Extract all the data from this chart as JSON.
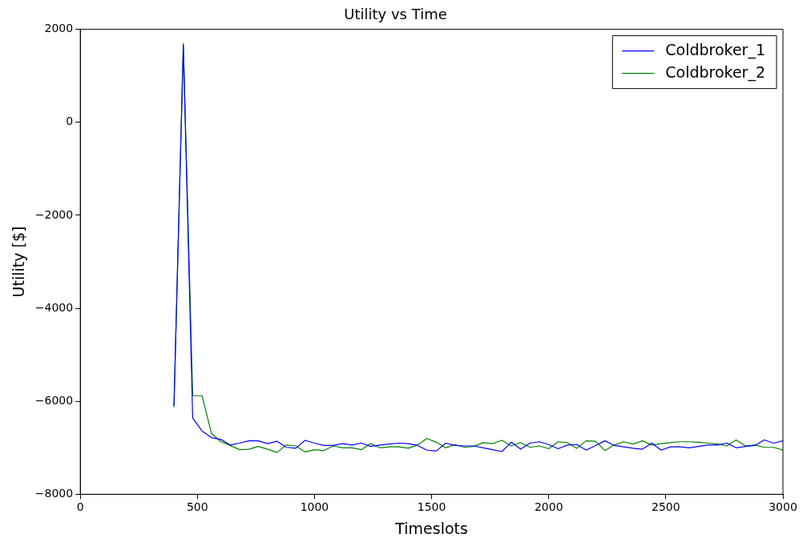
{
  "chart_data": {
    "type": "line",
    "title": "Utility vs Time",
    "xlabel": "Timeslots",
    "ylabel": "Utility [$]",
    "x": [
      400,
      440,
      480,
      520,
      560,
      600,
      640,
      680,
      720,
      760,
      800,
      840,
      880,
      920,
      960,
      1000,
      1040,
      1080,
      1120,
      1160,
      1200,
      1240,
      1280,
      1320,
      1360,
      1400,
      1440,
      1480,
      1520,
      1560,
      1600,
      1640,
      1680,
      1720,
      1760,
      1800,
      1840,
      1880,
      1920,
      1960,
      2000,
      2040,
      2080,
      2120,
      2160,
      2200,
      2240,
      2280,
      2320,
      2360,
      2400,
      2440,
      2480,
      2520,
      2560,
      2600,
      2640,
      2680,
      2720,
      2760,
      2800,
      2840,
      2880,
      2920,
      2960,
      3000
    ],
    "series": [
      {
        "name": "Coldbroker_1",
        "color": "#0000ff",
        "values": [
          -6100,
          1650,
          -6360,
          -6640,
          -6780,
          -6820,
          -6940,
          -6900,
          -6850,
          -6850,
          -6910,
          -6860,
          -6990,
          -7010,
          -6840,
          -6900,
          -6950,
          -6950,
          -6910,
          -6940,
          -6900,
          -6970,
          -6940,
          -6920,
          -6900,
          -6910,
          -6950,
          -7050,
          -7070,
          -6900,
          -6950,
          -6960,
          -6960,
          -7000,
          -7040,
          -7080,
          -6880,
          -7030,
          -6900,
          -6870,
          -6930,
          -7020,
          -6940,
          -6930,
          -7050,
          -6950,
          -6850,
          -6950,
          -6980,
          -7010,
          -7030,
          -6900,
          -7050,
          -6980,
          -6980,
          -7000,
          -6970,
          -6940,
          -6940,
          -6900,
          -7000,
          -6970,
          -6950,
          -6830,
          -6900,
          -6850
        ]
      },
      {
        "name": "Coldbroker_2",
        "color": "#008000",
        "values": [
          -6130,
          1700,
          -5880,
          -5880,
          -6690,
          -6870,
          -6950,
          -7040,
          -7030,
          -6970,
          -7030,
          -7100,
          -6940,
          -6960,
          -7090,
          -7040,
          -7060,
          -6960,
          -7000,
          -7000,
          -7040,
          -6910,
          -7000,
          -6980,
          -6980,
          -7010,
          -6940,
          -6800,
          -6880,
          -7000,
          -6930,
          -6990,
          -6970,
          -6890,
          -6910,
          -6840,
          -6960,
          -6890,
          -6990,
          -6960,
          -7020,
          -6870,
          -6890,
          -7010,
          -6850,
          -6860,
          -7060,
          -6940,
          -6870,
          -6920,
          -6850,
          -6940,
          -6910,
          -6890,
          -6870,
          -6870,
          -6880,
          -6900,
          -6920,
          -6960,
          -6830,
          -6960,
          -6940,
          -6990,
          -6990,
          -7050
        ]
      }
    ],
    "xlim": [
      0,
      3000
    ],
    "xticks": [
      0,
      500,
      1000,
      1500,
      2000,
      2500,
      3000
    ],
    "ylim": [
      -8000,
      2000
    ],
    "yticks": [
      -8000,
      -6000,
      -4000,
      -2000,
      0,
      2000
    ],
    "grid": false,
    "legend": "top right",
    "marker": "none",
    "line_style": "solid"
  }
}
